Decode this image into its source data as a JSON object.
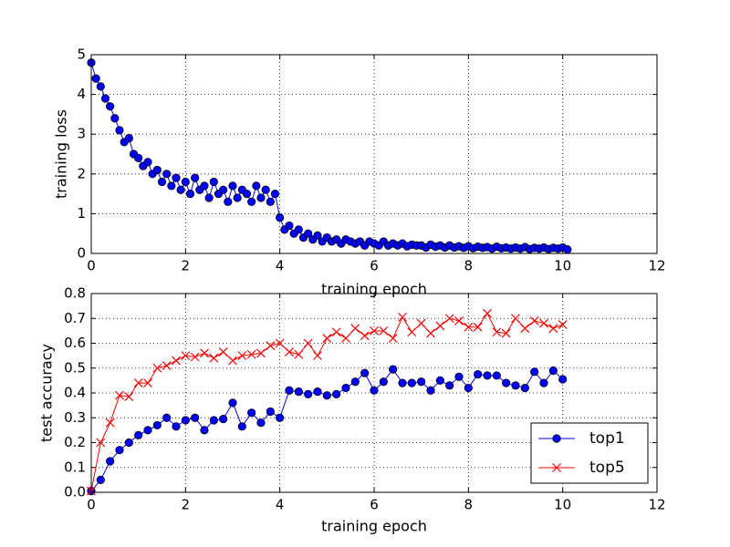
{
  "chart_data": [
    {
      "type": "line",
      "xlabel": "training epoch",
      "ylabel": "training loss",
      "color": "#0000ff",
      "marker": "o",
      "grid": true,
      "x": [
        0,
        0.1,
        0.2,
        0.3,
        0.4,
        0.5,
        0.6,
        0.7,
        0.8,
        0.9,
        1.0,
        1.1,
        1.2,
        1.3,
        1.4,
        1.5,
        1.6,
        1.7,
        1.8,
        1.9,
        2.0,
        2.1,
        2.2,
        2.3,
        2.4,
        2.5,
        2.6,
        2.7,
        2.8,
        2.9,
        3.0,
        3.1,
        3.2,
        3.3,
        3.4,
        3.5,
        3.6,
        3.7,
        3.8,
        3.9,
        4.0,
        4.1,
        4.2,
        4.3,
        4.4,
        4.5,
        4.6,
        4.7,
        4.8,
        4.9,
        5.0,
        5.1,
        5.2,
        5.3,
        5.4,
        5.5,
        5.6,
        5.7,
        5.8,
        5.9,
        6.0,
        6.1,
        6.2,
        6.3,
        6.4,
        6.5,
        6.6,
        6.7,
        6.8,
        6.9,
        7.0,
        7.1,
        7.2,
        7.3,
        7.4,
        7.5,
        7.6,
        7.7,
        7.8,
        7.9,
        8.0,
        8.1,
        8.2,
        8.3,
        8.4,
        8.5,
        8.6,
        8.7,
        8.8,
        8.9,
        9.0,
        9.1,
        9.2,
        9.3,
        9.4,
        9.5,
        9.6,
        9.7,
        9.8,
        9.9,
        10.0,
        10.1
      ],
      "values": [
        4.8,
        4.4,
        4.2,
        3.9,
        3.7,
        3.4,
        3.1,
        2.8,
        2.9,
        2.5,
        2.4,
        2.2,
        2.3,
        2.0,
        2.1,
        1.8,
        2.0,
        1.7,
        1.9,
        1.6,
        1.8,
        1.5,
        1.9,
        1.6,
        1.7,
        1.4,
        1.8,
        1.5,
        1.6,
        1.3,
        1.7,
        1.4,
        1.6,
        1.5,
        1.3,
        1.7,
        1.4,
        1.6,
        1.3,
        1.5,
        0.9,
        0.6,
        0.7,
        0.5,
        0.6,
        0.4,
        0.5,
        0.35,
        0.45,
        0.3,
        0.4,
        0.3,
        0.35,
        0.25,
        0.35,
        0.3,
        0.25,
        0.3,
        0.2,
        0.3,
        0.25,
        0.2,
        0.3,
        0.2,
        0.25,
        0.2,
        0.25,
        0.18,
        0.22,
        0.2,
        0.2,
        0.15,
        0.22,
        0.17,
        0.2,
        0.15,
        0.2,
        0.15,
        0.18,
        0.14,
        0.18,
        0.13,
        0.17,
        0.14,
        0.16,
        0.12,
        0.17,
        0.13,
        0.15,
        0.12,
        0.15,
        0.12,
        0.16,
        0.11,
        0.14,
        0.12,
        0.15,
        0.11,
        0.14,
        0.12,
        0.15,
        0.1
      ],
      "xlim": [
        0,
        12
      ],
      "xticks": [
        0,
        2,
        4,
        6,
        8,
        10,
        12
      ],
      "ylim": [
        0,
        5
      ],
      "yticks": [
        0,
        1,
        2,
        3,
        4,
        5
      ]
    },
    {
      "type": "line",
      "xlabel": "training epoch",
      "ylabel": "test accuracy",
      "grid": true,
      "legend": "lower right",
      "x": [
        0,
        0.2,
        0.4,
        0.6,
        0.8,
        1.0,
        1.2,
        1.4,
        1.6,
        1.8,
        2.0,
        2.2,
        2.4,
        2.6,
        2.8,
        3.0,
        3.2,
        3.4,
        3.6,
        3.8,
        4.0,
        4.2,
        4.4,
        4.6,
        4.8,
        5.0,
        5.2,
        5.4,
        5.6,
        5.8,
        6.0,
        6.2,
        6.4,
        6.6,
        6.8,
        7.0,
        7.2,
        7.4,
        7.6,
        7.8,
        8.0,
        8.2,
        8.4,
        8.6,
        8.8,
        9.0,
        9.2,
        9.4,
        9.6,
        9.8,
        10.0
      ],
      "series": [
        {
          "name": "top1",
          "color": "#0000ff",
          "marker": "o",
          "values": [
            0.005,
            0.05,
            0.125,
            0.17,
            0.2,
            0.23,
            0.25,
            0.27,
            0.3,
            0.265,
            0.29,
            0.3,
            0.25,
            0.29,
            0.295,
            0.36,
            0.265,
            0.32,
            0.28,
            0.325,
            0.3,
            0.41,
            0.405,
            0.395,
            0.405,
            0.39,
            0.395,
            0.42,
            0.445,
            0.48,
            0.41,
            0.445,
            0.495,
            0.44,
            0.44,
            0.445,
            0.41,
            0.45,
            0.43,
            0.465,
            0.42,
            0.475,
            0.47,
            0.47,
            0.44,
            0.43,
            0.42,
            0.485,
            0.44,
            0.49,
            0.455
          ]
        },
        {
          "name": "top5",
          "color": "#ff0000",
          "marker": "x",
          "values": [
            0.005,
            0.2,
            0.28,
            0.39,
            0.385,
            0.44,
            0.44,
            0.5,
            0.51,
            0.53,
            0.55,
            0.545,
            0.56,
            0.54,
            0.565,
            0.53,
            0.55,
            0.555,
            0.56,
            0.59,
            0.6,
            0.565,
            0.555,
            0.6,
            0.55,
            0.62,
            0.645,
            0.62,
            0.66,
            0.63,
            0.65,
            0.65,
            0.62,
            0.705,
            0.645,
            0.68,
            0.64,
            0.67,
            0.7,
            0.69,
            0.665,
            0.665,
            0.72,
            0.645,
            0.64,
            0.7,
            0.66,
            0.69,
            0.68,
            0.66,
            0.675
          ]
        }
      ],
      "xlim": [
        0,
        12
      ],
      "xticks": [
        0,
        2,
        4,
        6,
        8,
        10,
        12
      ],
      "ylim": [
        0,
        0.8
      ],
      "yticks": [
        {
          "value": 0,
          "label": "0.0"
        },
        0.1,
        0.2,
        0.3,
        0.4,
        0.5,
        0.6,
        0.7,
        0.8
      ]
    }
  ]
}
